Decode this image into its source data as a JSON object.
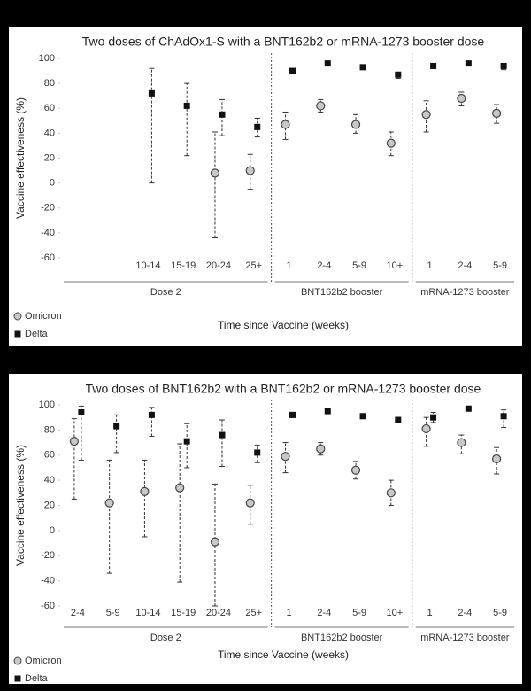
{
  "chart_data": [
    {
      "type": "errorbar-scatter",
      "title": "Two doses of ChAdOx1-S with a BNT162b2 or mRNA-1273 booster dose",
      "y_label": "Vaccine effectiveness (%)",
      "x_label": "Time since Vaccine (weeks)",
      "groups": [
        {
          "label": "Dose 2",
          "categories": [
            null,
            null,
            "10-14",
            "15-19",
            "20-24",
            "25+"
          ]
        },
        {
          "label": "BNT162b2 booster",
          "categories": [
            "1",
            "2-4",
            "5-9",
            "10+"
          ]
        },
        {
          "label": "mRNA-1273 booster",
          "categories": [
            "1",
            "2-4",
            "5-9"
          ]
        }
      ],
      "ylim": [
        -60,
        100
      ],
      "yticks": [
        -60,
        -40,
        -20,
        0,
        20,
        40,
        60,
        80,
        100
      ],
      "legend": "bottom-left",
      "series": [
        {
          "name": "Omicron",
          "marker": "circle",
          "color": "#c8c8c8",
          "values": [
            null,
            null,
            null,
            null,
            8,
            10,
            47,
            62,
            47,
            32,
            55,
            68,
            56
          ],
          "lower": [
            null,
            null,
            null,
            null,
            -44,
            -5,
            35,
            57,
            40,
            22,
            41,
            62,
            48
          ],
          "upper": [
            null,
            null,
            null,
            null,
            41,
            23,
            57,
            67,
            55,
            41,
            66,
            73,
            63
          ]
        },
        {
          "name": "Delta",
          "marker": "square",
          "color": "#111111",
          "values": [
            null,
            null,
            72,
            62,
            55,
            45,
            90,
            96,
            93,
            87,
            94,
            96,
            94
          ],
          "lower": [
            null,
            null,
            0,
            22,
            38,
            37,
            88,
            95,
            92,
            84,
            92,
            96,
            91
          ],
          "upper": [
            null,
            null,
            92,
            80,
            67,
            52,
            91,
            97,
            94,
            89,
            95,
            97,
            96
          ]
        }
      ]
    },
    {
      "type": "errorbar-scatter",
      "title": "Two doses of BNT162b2 with a BNT162b2 or mRNA-1273 booster dose",
      "y_label": "Vaccine effectiveness (%)",
      "x_label": "Time since Vaccine (weeks)",
      "groups": [
        {
          "label": "Dose 2",
          "categories": [
            "2-4",
            "5-9",
            "10-14",
            "15-19",
            "20-24",
            "25+"
          ]
        },
        {
          "label": "BNT162b2 booster",
          "categories": [
            "1",
            "2-4",
            "5-9",
            "10+"
          ]
        },
        {
          "label": "mRNA-1273 booster",
          "categories": [
            "1",
            "2-4",
            "5-9"
          ]
        }
      ],
      "ylim": [
        -60,
        100
      ],
      "yticks": [
        -60,
        -40,
        -20,
        0,
        20,
        40,
        60,
        80,
        100
      ],
      "legend": "bottom-left",
      "series": [
        {
          "name": "Omicron",
          "marker": "circle",
          "color": "#c8c8c8",
          "values": [
            71,
            22,
            31,
            34,
            -9,
            22,
            59,
            65,
            48,
            30,
            81,
            70,
            57
          ],
          "lower": [
            25,
            -34,
            -5,
            -41,
            -60,
            5,
            46,
            60,
            41,
            20,
            67,
            61,
            45
          ],
          "upper": [
            89,
            56,
            56,
            69,
            37,
            36,
            70,
            70,
            55,
            40,
            90,
            76,
            66
          ]
        },
        {
          "name": "Delta",
          "marker": "square",
          "color": "#111111",
          "values": [
            94,
            83,
            92,
            71,
            76,
            62,
            92,
            95,
            91,
            88,
            90,
            97,
            91
          ],
          "lower": [
            56,
            62,
            75,
            50,
            51,
            54,
            90,
            95,
            90,
            87,
            86,
            97,
            82
          ],
          "upper": [
            99,
            92,
            98,
            85,
            88,
            68,
            93,
            96,
            92,
            89,
            94,
            98,
            96
          ]
        }
      ]
    }
  ]
}
